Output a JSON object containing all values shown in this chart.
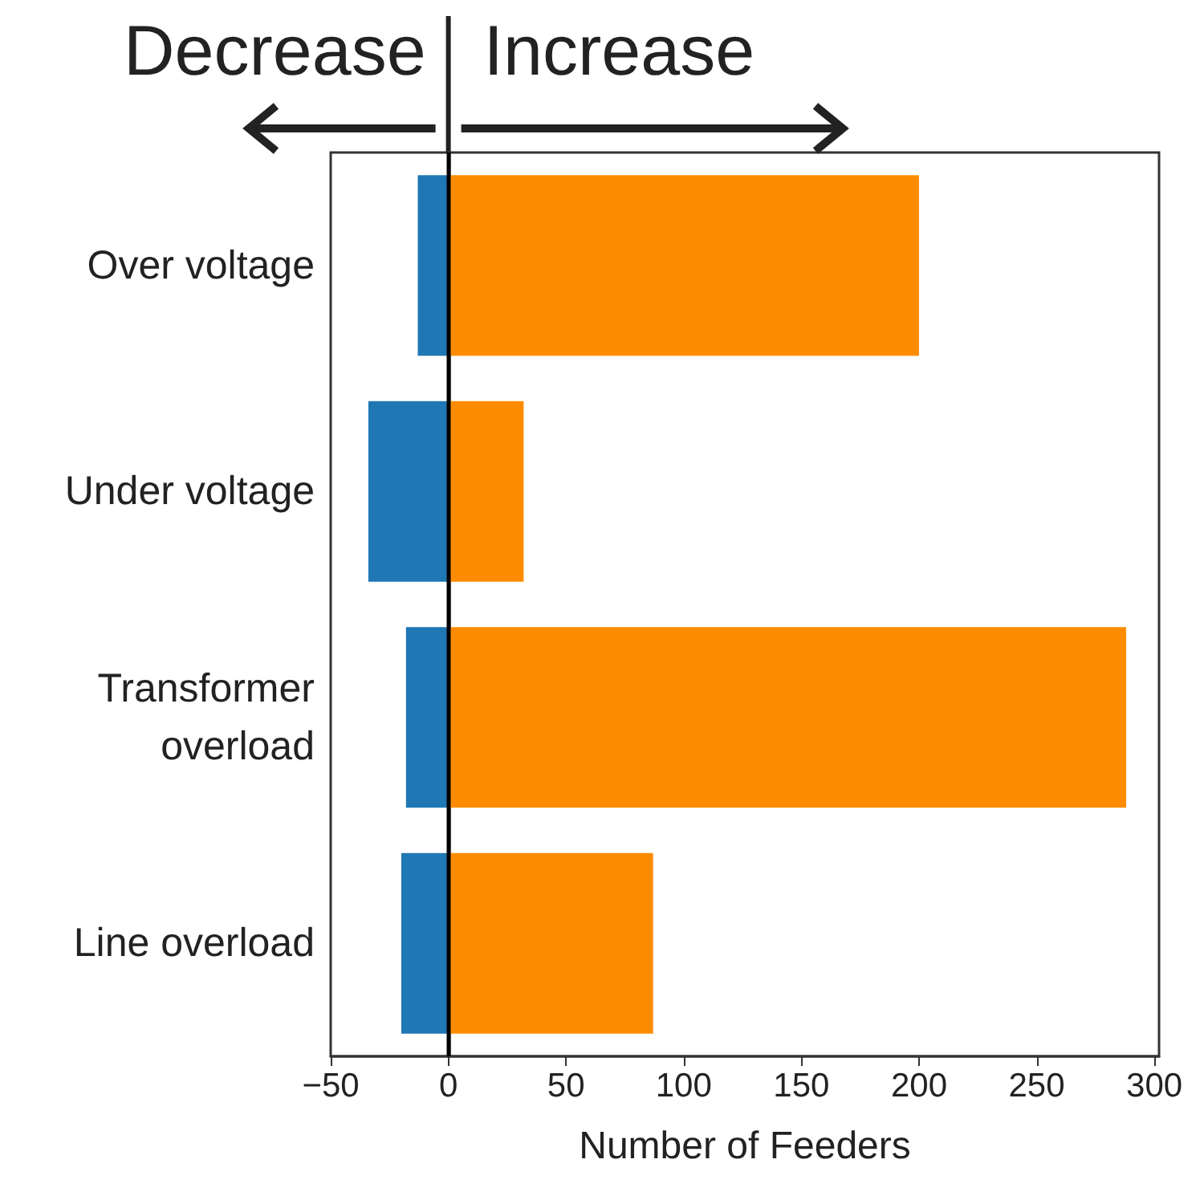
{
  "chart_data": {
    "type": "bar",
    "orientation": "horizontal",
    "stacked": true,
    "xlabel": "Number of Feeders",
    "categories": [
      "Over voltage",
      "Under voltage",
      "Transformer\noverload",
      "Line overload"
    ],
    "series": [
      {
        "color": "#1f77b4",
        "values": [
          -13,
          -34,
          -18,
          -20
        ]
      },
      {
        "color": "#ff8c00",
        "values": [
          200,
          32,
          288,
          87
        ]
      }
    ],
    "xlim": [
      -50,
      302
    ],
    "xticks": [
      {
        "value": -50,
        "label": "−50"
      },
      0,
      50,
      100,
      150,
      200,
      250,
      300
    ],
    "grid": false,
    "ref_lines": [
      {
        "axis": "x",
        "value": 0,
        "color": "#000000"
      }
    ],
    "annotations": [
      "Decrease",
      "Increase"
    ]
  }
}
